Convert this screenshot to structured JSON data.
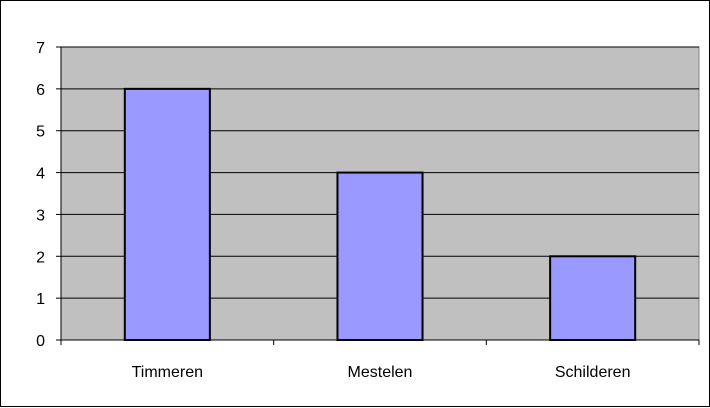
{
  "chart_data": {
    "type": "bar",
    "categories": [
      "Timmeren",
      "Mestelen",
      "Schilderen"
    ],
    "values": [
      6,
      4,
      2
    ],
    "ylim": [
      0,
      7
    ],
    "yticks": [
      0,
      1,
      2,
      3,
      4,
      5,
      6,
      7
    ],
    "grid": true,
    "legend": "none",
    "colors": {
      "bar_fill": "#9999ff",
      "bar_stroke": "#000000",
      "plot_background": "#c0c0c0",
      "gridline": "#000000"
    }
  }
}
